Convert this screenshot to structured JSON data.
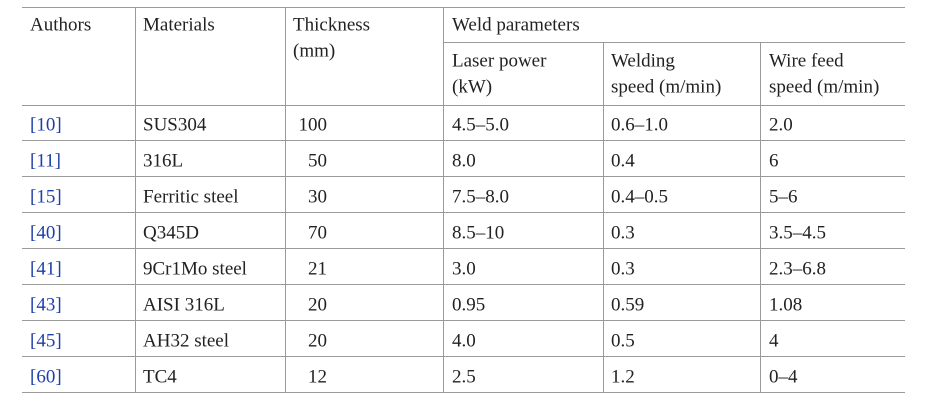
{
  "header": {
    "authors": "Authors",
    "materials": "Materials",
    "thickness": [
      "Thickness",
      "(mm)"
    ],
    "weld_parameters": "Weld parameters",
    "subcolumns": [
      [
        "Laser power",
        "(kW)"
      ],
      [
        "Welding",
        "speed (m/min)"
      ],
      [
        "Wire feed",
        "speed (m/min)"
      ]
    ]
  },
  "table": {
    "rows": [
      [
        "[10]",
        "SUS304",
        "100",
        "4.5–5.0",
        "0.6–1.0",
        "2.0"
      ],
      [
        "[11]",
        "316L",
        "50",
        "8.0",
        "0.4",
        "6"
      ],
      [
        "[15]",
        "Ferritic steel",
        "30",
        "7.5–8.0",
        "0.4–0.5",
        "5–6"
      ],
      [
        "[40]",
        "Q345D",
        "70",
        "8.5–10",
        "0.3",
        "3.5–4.5"
      ],
      [
        "[41]",
        "9Cr1Mo steel",
        "21",
        "3.0",
        "0.3",
        "2.3–6.8"
      ],
      [
        "[43]",
        "AISI 316L",
        "20",
        "0.95",
        "0.59",
        "1.08"
      ],
      [
        "[45]",
        "AH32 steel",
        "20",
        "4.0",
        "0.5",
        "4"
      ],
      [
        "[60]",
        "TC4",
        "12",
        "2.5",
        "1.2",
        "0–4"
      ]
    ]
  }
}
